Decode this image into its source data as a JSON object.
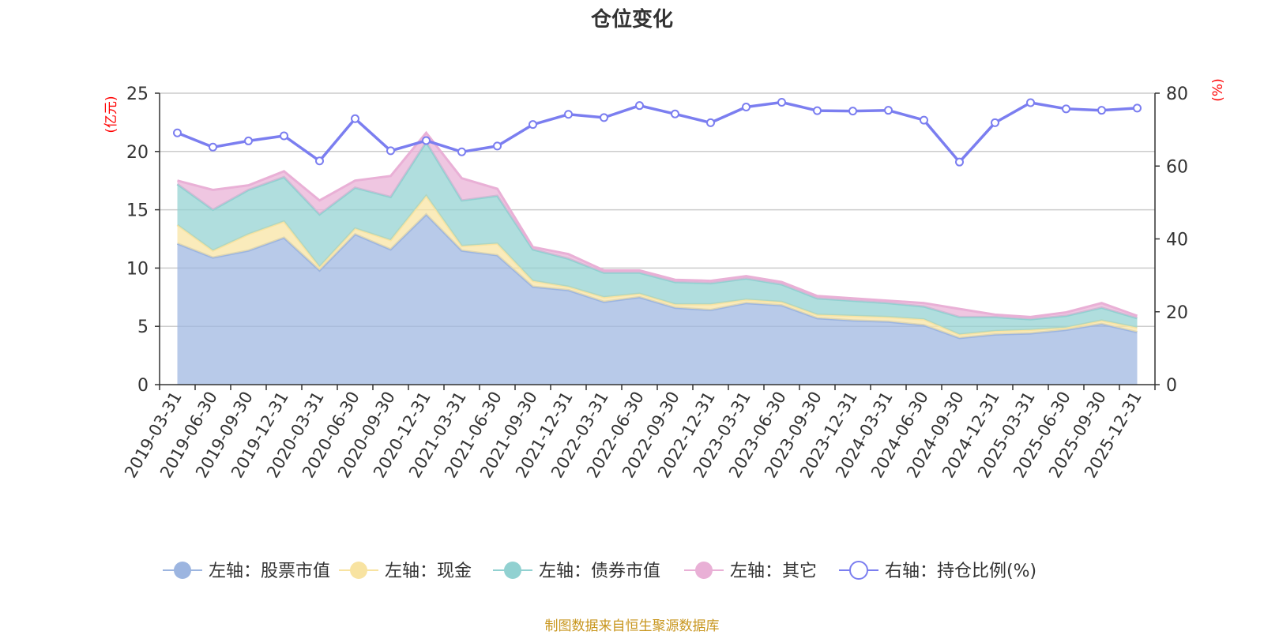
{
  "chart_data": {
    "type": "area",
    "title": "仓位变化",
    "left_axis": {
      "unit": "(亿元)",
      "ylim": [
        0,
        25
      ],
      "ticks": [
        "0",
        "5",
        "10",
        "15",
        "20",
        "25"
      ]
    },
    "right_axis": {
      "unit": "(%)",
      "ylim": [
        0,
        80
      ],
      "ticks": [
        "0",
        "20",
        "40",
        "60",
        "80"
      ]
    },
    "categories": [
      "2019-03-31",
      "2019-06-30",
      "2019-09-30",
      "2019-12-31",
      "2020-03-31",
      "2020-06-30",
      "2020-09-30",
      "2020-12-31",
      "2021-03-31",
      "2021-06-30",
      "2021-09-30",
      "2021-12-31",
      "2022-03-31",
      "2022-06-30",
      "2022-09-30",
      "2022-12-31",
      "2023-03-31",
      "2023-06-30",
      "2023-09-30",
      "2023-12-31",
      "2024-03-31",
      "2024-06-30",
      "2024-09-30",
      "2024-12-31",
      "2025-03-31",
      "2025-06-30",
      "2025-09-30",
      "2025-12-31"
    ],
    "series": [
      {
        "name": "左轴：股票市值",
        "axis": "left",
        "stacked": true,
        "color": "#9cb5e0",
        "values": [
          12.1,
          10.9,
          11.5,
          12.6,
          9.8,
          12.9,
          11.6,
          14.6,
          11.5,
          11.1,
          8.4,
          8.1,
          7.1,
          7.5,
          6.6,
          6.4,
          7.0,
          6.8,
          5.7,
          5.5,
          5.4,
          5.1,
          4.0,
          4.3,
          4.4,
          4.7,
          5.2,
          4.5
        ]
      },
      {
        "name": "左轴：现金",
        "axis": "left",
        "stacked": true,
        "color": "#f8e3a1",
        "values": [
          1.6,
          0.6,
          1.4,
          1.4,
          0.3,
          0.5,
          0.8,
          1.6,
          0.4,
          1.0,
          0.5,
          0.3,
          0.4,
          0.3,
          0.3,
          0.5,
          0.3,
          0.3,
          0.3,
          0.4,
          0.4,
          0.5,
          0.3,
          0.3,
          0.3,
          0.2,
          0.3,
          0.4
        ]
      },
      {
        "name": "左轴：债券市值",
        "axis": "left",
        "stacked": true,
        "color": "#91d1d1",
        "values": [
          3.5,
          3.5,
          3.8,
          3.8,
          4.5,
          3.5,
          3.7,
          4.6,
          3.9,
          4.1,
          2.7,
          2.4,
          2.1,
          1.8,
          1.9,
          1.8,
          1.8,
          1.5,
          1.4,
          1.3,
          1.2,
          1.1,
          1.5,
          1.2,
          0.9,
          1.0,
          1.1,
          0.8
        ]
      },
      {
        "name": "左轴：其它",
        "axis": "left",
        "stacked": true,
        "color": "#e9b0d6",
        "values": [
          0.3,
          1.7,
          0.4,
          0.5,
          1.2,
          0.6,
          1.8,
          0.8,
          1.9,
          0.6,
          0.2,
          0.4,
          0.2,
          0.2,
          0.2,
          0.2,
          0.2,
          0.2,
          0.2,
          0.2,
          0.2,
          0.3,
          0.7,
          0.2,
          0.2,
          0.3,
          0.4,
          0.2
        ]
      },
      {
        "name": "右轴：持仓比例(%)",
        "axis": "right",
        "stacked": false,
        "color": "#7b7ef0",
        "values": [
          69.1,
          65.2,
          66.9,
          68.3,
          61.4,
          73.0,
          64.2,
          67.0,
          63.9,
          65.5,
          71.4,
          74.2,
          73.3,
          76.6,
          74.3,
          71.9,
          76.2,
          77.5,
          75.2,
          75.1,
          75.3,
          72.6,
          61.1,
          71.9,
          77.4,
          75.7,
          75.3,
          75.9
        ]
      }
    ],
    "legend_position": "bottom",
    "grid": true
  },
  "source": "制图数据来自恒生聚源数据库"
}
